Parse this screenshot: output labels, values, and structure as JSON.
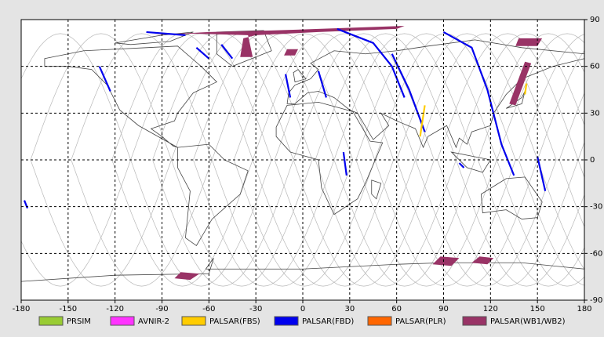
{
  "chart_data": {
    "type": "map",
    "xlim": [
      -180,
      180
    ],
    "ylim": [
      -90,
      90
    ],
    "xticks": [
      -180,
      -150,
      -120,
      -90,
      -60,
      -30,
      0,
      30,
      60,
      90,
      120,
      150,
      180
    ],
    "yticks": [
      -90,
      -60,
      -30,
      0,
      30,
      60,
      90
    ],
    "grid": true,
    "series": [
      {
        "name": "PRSIM",
        "color": "#99cc33"
      },
      {
        "name": "AVNIR-2",
        "color": "#ff33ff"
      },
      {
        "name": "PALSAR(FBS)",
        "color": "#ffcc00"
      },
      {
        "name": "PALSAR(FBD)",
        "color": "#0000ee"
      },
      {
        "name": "PALSAR(PLR)",
        "color": "#ff6600"
      },
      {
        "name": "PALSAR(WB1/WB2)",
        "color": "#993366"
      }
    ]
  }
}
